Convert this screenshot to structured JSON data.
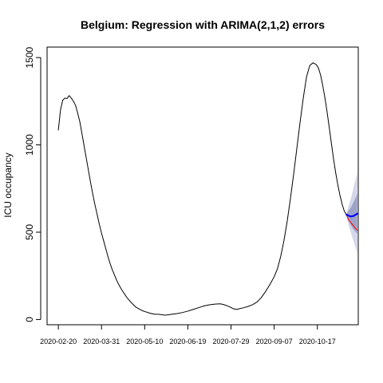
{
  "chart_data": {
    "type": "line",
    "title": "Belgium: Regression with ARIMA(2,1,2) errors",
    "xlabel": "",
    "ylabel": "ICU occupancy",
    "y_ticks": [
      "0",
      "500",
      "1000",
      "1500"
    ],
    "x_tick_labels": [
      "2020-02-20",
      "2020-03-31",
      "2020-05-10",
      "2020-06-19",
      "2020-07-29",
      "2020-09-07",
      "2020-10-17"
    ],
    "x_range_days": [
      -6,
      272
    ],
    "ylim": [
      -30,
      1560
    ],
    "grid": false,
    "legend": "none",
    "series": [
      {
        "color": "#000000",
        "points": [
          [
            0,
            1085
          ],
          [
            2,
            1200
          ],
          [
            4,
            1255
          ],
          [
            6,
            1268
          ],
          [
            8,
            1265
          ],
          [
            10,
            1282
          ],
          [
            12,
            1268
          ],
          [
            14,
            1250
          ],
          [
            16,
            1225
          ],
          [
            18,
            1180
          ],
          [
            20,
            1130
          ],
          [
            22,
            1060
          ],
          [
            24,
            990
          ],
          [
            26,
            920
          ],
          [
            28,
            850
          ],
          [
            30,
            780
          ],
          [
            32,
            715
          ],
          [
            34,
            655
          ],
          [
            36,
            600
          ],
          [
            38,
            545
          ],
          [
            40,
            495
          ],
          [
            42,
            450
          ],
          [
            44,
            405
          ],
          [
            46,
            360
          ],
          [
            48,
            320
          ],
          [
            50,
            285
          ],
          [
            52,
            255
          ],
          [
            54,
            225
          ],
          [
            56,
            200
          ],
          [
            58,
            178
          ],
          [
            60,
            158
          ],
          [
            62,
            140
          ],
          [
            64,
            122
          ],
          [
            66,
            108
          ],
          [
            68,
            94
          ],
          [
            70,
            82
          ],
          [
            72,
            70
          ],
          [
            75,
            60
          ],
          [
            78,
            50
          ],
          [
            81,
            44
          ],
          [
            84,
            38
          ],
          [
            87,
            33
          ],
          [
            90,
            30
          ],
          [
            93,
            30
          ],
          [
            96,
            27
          ],
          [
            99,
            25
          ],
          [
            102,
            27
          ],
          [
            105,
            30
          ],
          [
            110,
            34
          ],
          [
            115,
            40
          ],
          [
            120,
            48
          ],
          [
            125,
            58
          ],
          [
            130,
            68
          ],
          [
            135,
            78
          ],
          [
            140,
            84
          ],
          [
            145,
            88
          ],
          [
            150,
            90
          ],
          [
            153,
            86
          ],
          [
            156,
            80
          ],
          [
            159,
            72
          ],
          [
            162,
            62
          ],
          [
            165,
            58
          ],
          [
            168,
            62
          ],
          [
            172,
            68
          ],
          [
            176,
            75
          ],
          [
            180,
            85
          ],
          [
            184,
            100
          ],
          [
            188,
            125
          ],
          [
            192,
            160
          ],
          [
            196,
            200
          ],
          [
            200,
            245
          ],
          [
            203,
            290
          ],
          [
            206,
            360
          ],
          [
            209,
            450
          ],
          [
            212,
            560
          ],
          [
            215,
            690
          ],
          [
            218,
            830
          ],
          [
            221,
            980
          ],
          [
            224,
            1130
          ],
          [
            227,
            1270
          ],
          [
            230,
            1390
          ],
          [
            233,
            1455
          ],
          [
            236,
            1470
          ],
          [
            239,
            1460
          ],
          [
            241,
            1440
          ],
          [
            243,
            1400
          ],
          [
            245,
            1340
          ],
          [
            247,
            1270
          ],
          [
            249,
            1190
          ],
          [
            251,
            1100
          ],
          [
            253,
            1010
          ],
          [
            255,
            920
          ],
          [
            257,
            840
          ],
          [
            259,
            770
          ],
          [
            261,
            710
          ],
          [
            263,
            660
          ],
          [
            265,
            620
          ],
          [
            267,
            600
          ]
        ]
      },
      {
        "color": "#ff0000",
        "points": [
          [
            267,
            600
          ],
          [
            269,
            570
          ],
          [
            271,
            555
          ],
          [
            273,
            540
          ],
          [
            275,
            525
          ],
          [
            277,
            512
          ]
        ]
      },
      {
        "color": "#0000ff",
        "points": [
          [
            267,
            600
          ],
          [
            269,
            595
          ],
          [
            271,
            590
          ],
          [
            273,
            592
          ],
          [
            275,
            598
          ],
          [
            277,
            606
          ]
        ]
      }
    ],
    "forecast_interval": {
      "x": [
        267,
        269,
        271,
        273,
        275,
        277
      ],
      "lo80": [
        595,
        565,
        540,
        520,
        505,
        490
      ],
      "hi80": [
        605,
        625,
        640,
        665,
        690,
        720
      ],
      "lo95": [
        590,
        540,
        500,
        460,
        420,
        380
      ],
      "hi95": [
        610,
        650,
        690,
        740,
        790,
        840
      ]
    },
    "colors": {
      "band95": "#d4d6ea",
      "band80": "#9ea3c9"
    }
  }
}
